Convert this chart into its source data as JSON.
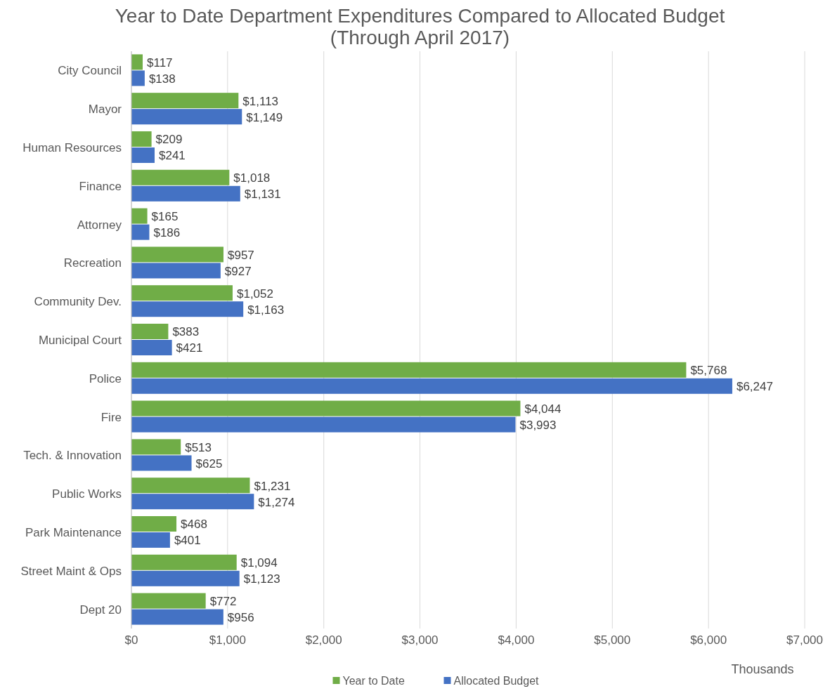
{
  "chart_data": {
    "type": "bar",
    "orientation": "horizontal",
    "title": "Year to Date Department Expenditures Compared to Allocated Budget\n(Through April 2017)",
    "xlabel": "Thousands",
    "categories": [
      "City Council",
      "Mayor",
      "Human Resources",
      "Finance",
      "Attorney",
      "Recreation",
      "Community Dev.",
      "Municipal Court",
      "Police",
      "Fire",
      "Tech. & Innovation",
      "Public Works",
      "Park Maintenance",
      "Street Maint & Ops",
      "Dept 20"
    ],
    "series": [
      {
        "name": "Year to Date",
        "color": "#70ad47",
        "values": [
          117,
          1113,
          209,
          1018,
          165,
          957,
          1052,
          383,
          5768,
          4044,
          513,
          1231,
          468,
          1094,
          772
        ],
        "value_labels": [
          "$117",
          "$1,113",
          "$209",
          "$1,018",
          "$165",
          "$957",
          "$1,052",
          "$383",
          "$5,768",
          "$4,044",
          "$513",
          "$1,231",
          "$468",
          "$1,094",
          "$772"
        ]
      },
      {
        "name": "Allocated Budget",
        "color": "#4472c4",
        "values": [
          138,
          1149,
          241,
          1131,
          186,
          927,
          1163,
          421,
          6247,
          3993,
          625,
          1274,
          401,
          1123,
          956
        ],
        "value_labels": [
          "$138",
          "$1,149",
          "$241",
          "$1,131",
          "$186",
          "$927",
          "$1,163",
          "$421",
          "$6,247",
          "$3,993",
          "$625",
          "$1,274",
          "$401",
          "$1,123",
          "$956"
        ]
      }
    ],
    "xlim": [
      0,
      7000
    ],
    "xticks": [
      {
        "value": 0,
        "label": "$0"
      },
      {
        "value": 1000,
        "label": "$1,000"
      },
      {
        "value": 2000,
        "label": "$2,000"
      },
      {
        "value": 3000,
        "label": "$3,000"
      },
      {
        "value": 4000,
        "label": "$4,000"
      },
      {
        "value": 5000,
        "label": "$5,000"
      },
      {
        "value": 6000,
        "label": "$6,000"
      },
      {
        "value": 7000,
        "label": "$7,000"
      }
    ],
    "grid": "x",
    "legend": "bottom"
  }
}
